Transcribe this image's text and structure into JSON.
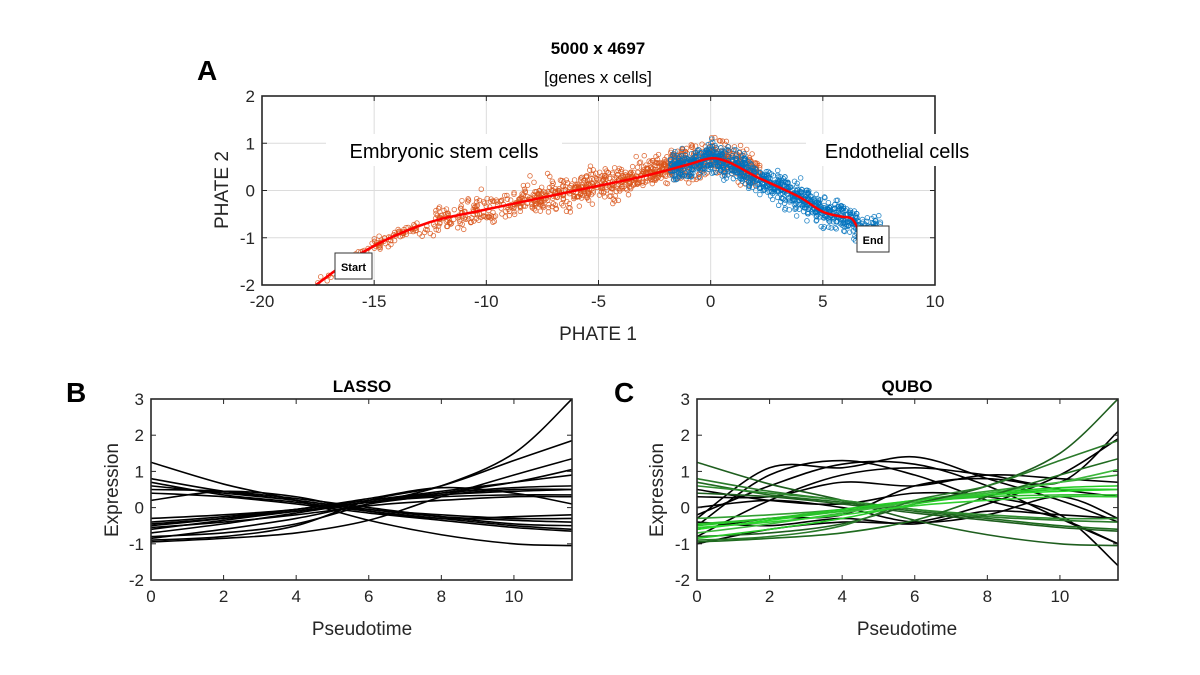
{
  "chart_data": [
    {
      "panel": "A",
      "type": "scatter",
      "title": "5000 x 4697",
      "subtitle": "[genes x cells]",
      "xlabel": "PHATE 1",
      "ylabel": "PHATE 2",
      "xlim": [
        -20,
        10
      ],
      "ylim": [
        -2,
        2
      ],
      "xticks": [
        -20,
        -15,
        -10,
        -5,
        0,
        5,
        10
      ],
      "yticks": [
        -2,
        -1,
        0,
        1,
        2
      ],
      "grid": true,
      "annotations": {
        "left_cluster": "Embryonic stem cells",
        "right_cluster": "Endothelial cells",
        "start": "Start",
        "end": "End"
      },
      "colors": {
        "embryonic": "#d95319",
        "endothelial": "#0072bd",
        "trajectory": "#ff0000"
      },
      "clusters": [
        {
          "name": "Embryonic stem cells",
          "color": "#d95319",
          "x_range": [
            -17.6,
            2.2
          ]
        },
        {
          "name": "Endothelial cells",
          "color": "#0072bd",
          "x_range": [
            -1.8,
            7.6
          ]
        }
      ],
      "trajectory": {
        "x": [
          -17.6,
          -16,
          -14.5,
          -13,
          -12,
          -10.5,
          -9,
          -7,
          -5,
          -3,
          -1,
          0,
          0.8,
          2,
          3,
          4,
          5,
          5.8,
          6.3,
          6.6
        ],
        "y": [
          -2.0,
          -1.45,
          -1.05,
          -0.75,
          -0.6,
          -0.45,
          -0.3,
          -0.1,
          0.1,
          0.3,
          0.55,
          0.68,
          0.6,
          0.3,
          0.08,
          -0.15,
          -0.45,
          -0.55,
          -0.6,
          -0.85
        ]
      }
    },
    {
      "panel": "B",
      "type": "line",
      "title": "LASSO",
      "xlabel": "Pseudotime",
      "ylabel": "Expression",
      "xlim": [
        0,
        11.6
      ],
      "ylim": [
        -2,
        3
      ],
      "xticks": [
        0,
        2,
        4,
        6,
        8,
        10
      ],
      "yticks": [
        -2,
        -1,
        0,
        1,
        2,
        3
      ],
      "grid": false,
      "x": [
        0,
        2,
        4,
        6,
        8,
        10,
        11.6
      ],
      "series": [
        {
          "color": "#000000",
          "values": [
            1.25,
            0.65,
            0.2,
            -0.35,
            -0.75,
            -1.0,
            -1.05
          ]
        },
        {
          "color": "#000000",
          "values": [
            0.8,
            0.45,
            0.2,
            -0.05,
            -0.25,
            -0.35,
            -0.4
          ]
        },
        {
          "color": "#000000",
          "values": [
            0.7,
            0.35,
            0.15,
            -0.1,
            -0.3,
            -0.5,
            -0.6
          ]
        },
        {
          "color": "#000000",
          "values": [
            0.6,
            0.4,
            0.2,
            -0.05,
            -0.2,
            -0.3,
            -0.3
          ]
        },
        {
          "color": "#000000",
          "values": [
            0.4,
            0.3,
            0.1,
            -0.15,
            -0.35,
            -0.55,
            -0.65
          ]
        },
        {
          "color": "#000000",
          "values": [
            0.5,
            0.45,
            0.25,
            0.0,
            -0.25,
            -0.45,
            -0.5
          ]
        },
        {
          "color": "#000000",
          "values": [
            0.2,
            0.45,
            0.3,
            -0.1,
            -0.3,
            -0.25,
            -0.2
          ]
        },
        {
          "color": "#000000",
          "values": [
            -0.3,
            -0.2,
            -0.05,
            0.2,
            0.45,
            0.7,
            0.9
          ]
        },
        {
          "color": "#000000",
          "values": [
            -0.5,
            -0.3,
            -0.05,
            0.2,
            0.4,
            0.55,
            0.6
          ]
        },
        {
          "color": "#000000",
          "values": [
            -0.6,
            -0.35,
            -0.1,
            0.15,
            0.35,
            0.45,
            0.5
          ]
        },
        {
          "color": "#000000",
          "values": [
            -0.45,
            -0.3,
            -0.1,
            0.15,
            0.3,
            0.35,
            0.35
          ]
        },
        {
          "color": "#000000",
          "values": [
            -0.7,
            -0.45,
            -0.15,
            0.15,
            0.4,
            0.7,
            1.05
          ]
        },
        {
          "color": "#000000",
          "values": [
            -0.8,
            -0.7,
            -0.45,
            0.1,
            0.6,
            1.5,
            3.0
          ]
        },
        {
          "color": "#000000",
          "values": [
            -0.9,
            -0.8,
            -0.5,
            0.2,
            0.6,
            1.3,
            1.85
          ]
        },
        {
          "color": "#000000",
          "values": [
            -0.95,
            -0.85,
            -0.7,
            -0.35,
            0.3,
            0.9,
            1.35
          ]
        },
        {
          "color": "#000000",
          "values": [
            -0.4,
            -0.25,
            -0.05,
            0.25,
            0.55,
            0.4,
            0.1
          ]
        },
        {
          "color": "#000000",
          "values": [
            -0.85,
            -0.6,
            -0.3,
            0.1,
            0.35,
            0.5,
            0.5
          ]
        },
        {
          "color": "#000000",
          "values": [
            -0.55,
            -0.4,
            -0.2,
            0.05,
            0.2,
            0.3,
            0.3
          ]
        }
      ]
    },
    {
      "panel": "C",
      "type": "line",
      "title": "QUBO",
      "xlabel": "Pseudotime",
      "ylabel": "Expression",
      "xlim": [
        0,
        11.6
      ],
      "ylim": [
        -2,
        3
      ],
      "xticks": [
        0,
        2,
        4,
        6,
        8,
        10
      ],
      "yticks": [
        -2,
        -1,
        0,
        1,
        2,
        3
      ],
      "grid": false,
      "x": [
        0,
        2,
        4,
        6,
        8,
        10,
        11.6
      ],
      "series": [
        {
          "color": "#000000",
          "values": [
            -0.5,
            0.9,
            1.3,
            0.9,
            0.2,
            -0.3,
            -1.0
          ]
        },
        {
          "color": "#000000",
          "values": [
            -0.3,
            1.1,
            1.1,
            1.4,
            0.8,
            0.2,
            -0.4
          ]
        },
        {
          "color": "#000000",
          "values": [
            -0.8,
            0.2,
            0.9,
            1.1,
            0.9,
            0.7,
            2.1
          ]
        },
        {
          "color": "#000000",
          "values": [
            0.3,
            0.3,
            0.7,
            0.6,
            0.9,
            0.8,
            0.7
          ]
        },
        {
          "color": "#000000",
          "values": [
            -1.0,
            -0.6,
            -0.4,
            -0.4,
            0.1,
            0.9,
            1.9
          ]
        },
        {
          "color": "#000000",
          "values": [
            0.5,
            0.2,
            0.1,
            0.4,
            0.3,
            -0.2,
            -1.6
          ]
        },
        {
          "color": "#000000",
          "values": [
            -0.2,
            0.6,
            1.2,
            1.2,
            0.6,
            -0.3,
            -1.0
          ]
        },
        {
          "color": "#000000",
          "values": [
            -0.6,
            -0.3,
            -0.2,
            0.6,
            0.8,
            0.5,
            0.3
          ]
        },
        {
          "color": "#000000",
          "values": [
            0.0,
            0.2,
            0.0,
            -0.4,
            -0.2,
            0.3,
            -0.3
          ]
        },
        {
          "color": "#000000",
          "values": [
            -0.4,
            -0.5,
            -0.3,
            -0.45,
            -0.1,
            -0.2,
            -0.3
          ]
        },
        {
          "color": "#1e5e1e",
          "values": [
            1.25,
            0.65,
            0.2,
            -0.35,
            -0.75,
            -1.0,
            -1.05
          ]
        },
        {
          "color": "#2a7a2a",
          "values": [
            0.8,
            0.45,
            0.2,
            -0.05,
            -0.25,
            -0.35,
            -0.4
          ]
        },
        {
          "color": "#1f6b1f",
          "values": [
            0.7,
            0.35,
            0.15,
            -0.1,
            -0.3,
            -0.5,
            -0.6
          ]
        },
        {
          "color": "#2e8b2e",
          "values": [
            0.6,
            0.4,
            0.2,
            -0.05,
            -0.2,
            -0.3,
            -0.3
          ]
        },
        {
          "color": "#1e5e1e",
          "values": [
            0.4,
            0.3,
            0.1,
            -0.15,
            -0.35,
            -0.55,
            -0.65
          ]
        },
        {
          "color": "#33a033",
          "values": [
            -0.3,
            -0.2,
            -0.05,
            0.2,
            0.45,
            0.7,
            0.9
          ]
        },
        {
          "color": "#22cc22",
          "values": [
            -0.5,
            -0.3,
            -0.05,
            0.2,
            0.4,
            0.55,
            0.6
          ]
        },
        {
          "color": "#22dd22",
          "values": [
            -0.6,
            -0.35,
            -0.1,
            0.15,
            0.35,
            0.45,
            0.5
          ]
        },
        {
          "color": "#2bbd2b",
          "values": [
            -0.45,
            -0.3,
            -0.1,
            0.15,
            0.3,
            0.35,
            0.35
          ]
        },
        {
          "color": "#3cb83c",
          "values": [
            -0.7,
            -0.45,
            -0.15,
            0.15,
            0.4,
            0.7,
            1.05
          ]
        },
        {
          "color": "#1e5e1e",
          "values": [
            -0.8,
            -0.7,
            -0.45,
            0.1,
            0.6,
            1.5,
            3.0
          ]
        },
        {
          "color": "#2a7a2a",
          "values": [
            -0.9,
            -0.8,
            -0.5,
            0.2,
            0.6,
            1.3,
            1.85
          ]
        },
        {
          "color": "#1f6b1f",
          "values": [
            -0.95,
            -0.85,
            -0.7,
            -0.35,
            0.3,
            0.9,
            1.35
          ]
        },
        {
          "color": "#28c828",
          "values": [
            -0.85,
            -0.6,
            -0.3,
            0.1,
            0.35,
            0.5,
            0.5
          ]
        },
        {
          "color": "#30d030",
          "values": [
            -0.55,
            -0.4,
            -0.2,
            0.05,
            0.2,
            0.3,
            0.3
          ]
        }
      ]
    }
  ]
}
